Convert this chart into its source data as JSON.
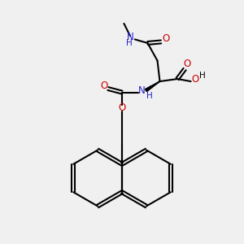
{
  "bg_color": "#f0f0f0",
  "black": "#000000",
  "blue": "#2222CC",
  "red": "#CC0000",
  "lw": 1.5,
  "lw_double": 1.5,
  "fs": 8.5,
  "fs_small": 7.5,
  "xlim": [
    0,
    10
  ],
  "ylim": [
    0,
    10
  ],
  "figsize": [
    3.0,
    3.0
  ],
  "dpi": 100
}
